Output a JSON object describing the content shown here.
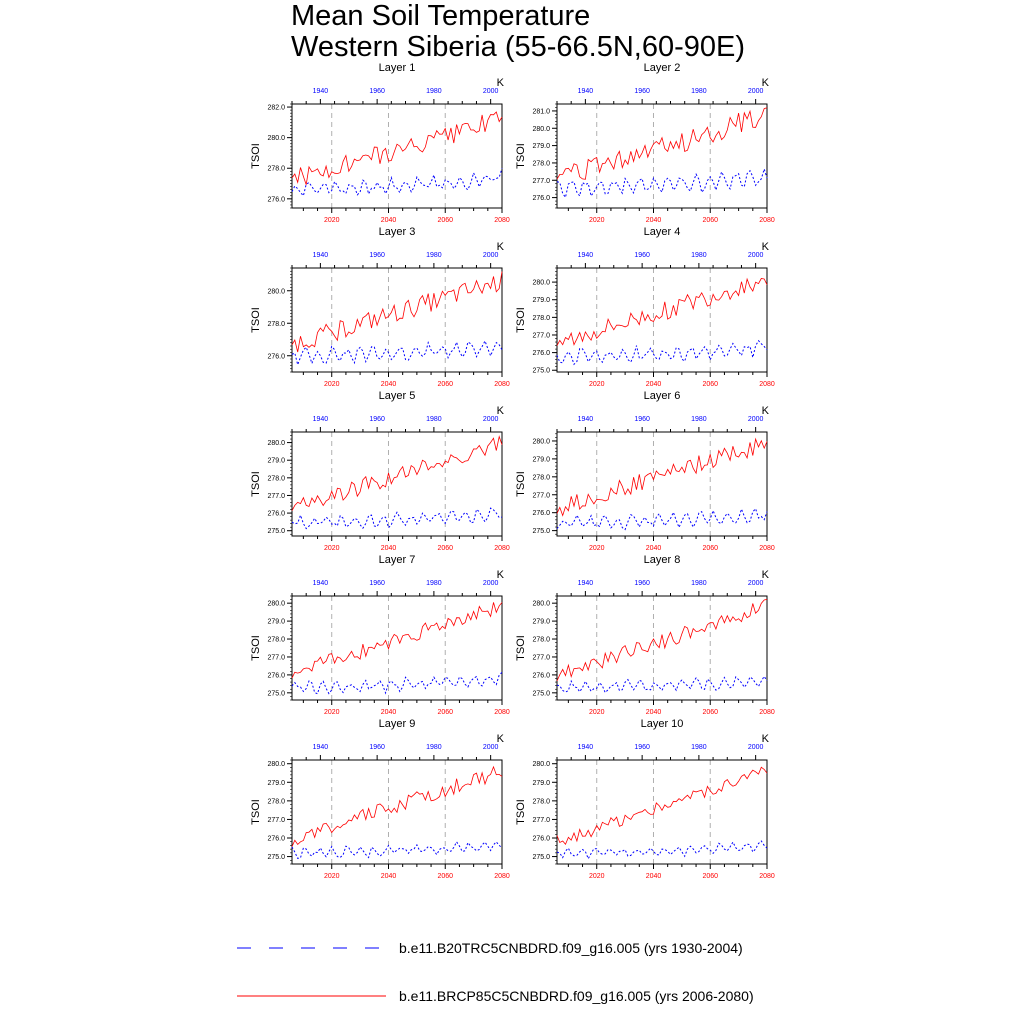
{
  "title_line1": "Mean Soil Temperature",
  "title_line2": "Western Siberia (55-66.5N,60-90E)",
  "units": "K",
  "legend": {
    "hist_label": "b.e11.B20TRC5CNBDRD.f09_g16.005 (yrs 1930-2004)",
    "hist_color": "#0000ff",
    "future_label": "b.e11.BRCP85C5CNBDRD.f09_g16.005 (yrs 2006-2080)",
    "future_color": "#ff0000"
  },
  "chart_data": {
    "type": "line",
    "ylabel": "TSOI",
    "x_bottom_label_years": [
      2020,
      2040,
      2060,
      2080
    ],
    "x_top_label_years": [
      1940,
      1960,
      1980,
      2000
    ],
    "x_range_future": [
      2006,
      2080
    ],
    "x_range_hist": [
      1930,
      2004
    ],
    "panels": [
      {
        "name": "Layer 1",
        "ylim": [
          275.4,
          282.2
        ],
        "yticks": [
          276,
          278,
          280,
          282
        ],
        "decimals": 1,
        "hist": {
          "mean": 276.7,
          "trend": 0.7,
          "amp": 0.55
        },
        "future": {
          "start": 277.2,
          "end": 281.2,
          "amp": 0.7
        }
      },
      {
        "name": "Layer 2",
        "ylim": [
          275.4,
          281.4
        ],
        "yticks": [
          276,
          277,
          278,
          279,
          280,
          281
        ],
        "decimals": 1,
        "hist": {
          "mean": 276.6,
          "trend": 0.6,
          "amp": 0.5
        },
        "future": {
          "start": 277.0,
          "end": 280.8,
          "amp": 0.65
        }
      },
      {
        "name": "Layer 3",
        "ylim": [
          275.0,
          281.4
        ],
        "yticks": [
          276,
          278,
          280
        ],
        "decimals": 1,
        "hist": {
          "mean": 276.0,
          "trend": 0.6,
          "amp": 0.5
        },
        "future": {
          "start": 276.7,
          "end": 280.6,
          "amp": 0.6
        }
      },
      {
        "name": "Layer 4",
        "ylim": [
          274.9,
          280.8
        ],
        "yticks": [
          275,
          276,
          277,
          278,
          279,
          280
        ],
        "decimals": 1,
        "hist": {
          "mean": 275.8,
          "trend": 0.5,
          "amp": 0.45
        },
        "future": {
          "start": 276.5,
          "end": 280.2,
          "amp": 0.55
        }
      },
      {
        "name": "Layer 5",
        "ylim": [
          274.7,
          280.6
        ],
        "yticks": [
          275,
          276,
          277,
          278,
          279,
          280
        ],
        "decimals": 1,
        "hist": {
          "mean": 275.5,
          "trend": 0.5,
          "amp": 0.4
        },
        "future": {
          "start": 276.3,
          "end": 280.0,
          "amp": 0.5
        }
      },
      {
        "name": "Layer 6",
        "ylim": [
          274.7,
          280.5
        ],
        "yticks": [
          275,
          276,
          277,
          278,
          279,
          280
        ],
        "decimals": 1,
        "hist": {
          "mean": 275.4,
          "trend": 0.5,
          "amp": 0.4
        },
        "future": {
          "start": 276.2,
          "end": 279.9,
          "amp": 0.5
        }
      },
      {
        "name": "Layer 7",
        "ylim": [
          274.6,
          280.4
        ],
        "yticks": [
          275,
          276,
          277,
          278,
          279,
          280
        ],
        "decimals": 1,
        "hist": {
          "mean": 275.3,
          "trend": 0.5,
          "amp": 0.35
        },
        "future": {
          "start": 276.1,
          "end": 279.8,
          "amp": 0.45
        }
      },
      {
        "name": "Layer 8",
        "ylim": [
          274.6,
          280.4
        ],
        "yticks": [
          275,
          276,
          277,
          278,
          279,
          280
        ],
        "decimals": 1,
        "hist": {
          "mean": 275.3,
          "trend": 0.4,
          "amp": 0.35
        },
        "future": {
          "start": 276.0,
          "end": 279.8,
          "amp": 0.45
        }
      },
      {
        "name": "Layer 9",
        "ylim": [
          274.6,
          280.2
        ],
        "yticks": [
          275,
          276,
          277,
          278,
          279,
          280
        ],
        "decimals": 1,
        "hist": {
          "mean": 275.2,
          "trend": 0.4,
          "amp": 0.3
        },
        "future": {
          "start": 275.9,
          "end": 279.6,
          "amp": 0.4
        }
      },
      {
        "name": "Layer 10",
        "ylim": [
          274.6,
          280.2
        ],
        "yticks": [
          275,
          276,
          277,
          278,
          279,
          280
        ],
        "decimals": 1,
        "hist": {
          "mean": 275.2,
          "trend": 0.4,
          "amp": 0.28
        },
        "future": {
          "start": 275.8,
          "end": 279.6,
          "amp": 0.35
        }
      }
    ]
  }
}
